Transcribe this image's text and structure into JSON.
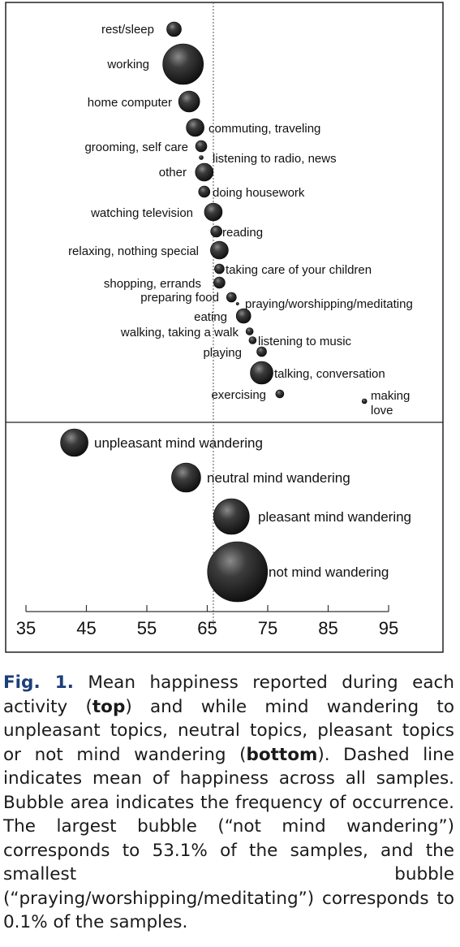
{
  "chart_data": {
    "type": "scatter",
    "xlim": [
      35,
      95
    ],
    "x_ticks": [
      "35",
      "45",
      "55",
      "65",
      "75",
      "85",
      "95"
    ],
    "mean_line": 66,
    "top_panel": {
      "points": [
        {
          "label": "rest/sleep",
          "x": 59.5,
          "label_side": "left"
        },
        {
          "label": "working",
          "x": 61,
          "label_side": "left"
        },
        {
          "label": "home computer",
          "x": 62,
          "label_side": "left"
        },
        {
          "label": "commuting, traveling",
          "x": 63,
          "label_side": "right"
        },
        {
          "label": "grooming, self care",
          "x": 64,
          "label_side": "left"
        },
        {
          "label": "listening to radio, news",
          "x": 64,
          "label_side": "right"
        },
        {
          "label": "other",
          "x": 64.5,
          "label_side": "left"
        },
        {
          "label": "doing housework",
          "x": 64.5,
          "label_side": "right"
        },
        {
          "label": "watching television",
          "x": 66,
          "label_side": "left"
        },
        {
          "label": "reading",
          "x": 66.5,
          "label_side": "right"
        },
        {
          "label": "relaxing, nothing special",
          "x": 67,
          "label_side": "left"
        },
        {
          "label": "taking care of your children",
          "x": 67,
          "label_side": "right"
        },
        {
          "label": "shopping, errands",
          "x": 67,
          "label_side": "left"
        },
        {
          "label": "preparing food",
          "x": 69,
          "label_side": "left"
        },
        {
          "label": "praying/worshipping/meditating",
          "x": 70,
          "label_side": "right"
        },
        {
          "label": "eating",
          "x": 71,
          "label_side": "left"
        },
        {
          "label": "walking, taking a walk",
          "x": 72,
          "label_side": "left"
        },
        {
          "label": "listening to music",
          "x": 72.5,
          "label_side": "right"
        },
        {
          "label": "playing",
          "x": 74,
          "label_side": "left"
        },
        {
          "label": "talking, conversation",
          "x": 74,
          "label_side": "right"
        },
        {
          "label": "exercising",
          "x": 77,
          "label_side": "left"
        },
        {
          "label": "making\nlove",
          "x": 91,
          "label_side": "right"
        }
      ]
    },
    "bottom_panel": {
      "points": [
        {
          "label": "unpleasant mind wandering",
          "x": 43,
          "label_side": "right"
        },
        {
          "label": "neutral mind wandering",
          "x": 61.5,
          "label_side": "right"
        },
        {
          "label": "pleasant mind wandering",
          "x": 69,
          "label_side": "right"
        },
        {
          "label": "not mind wandering",
          "x": 70,
          "percent": 53.1,
          "label_side": "right"
        }
      ]
    }
  },
  "caption": {
    "prefix": "Fig. 1.",
    "parts": [
      {
        "t": " Mean happiness reported during each activity ("
      },
      {
        "t": "top",
        "b": true
      },
      {
        "t": ") and while mind wandering to unpleasant topics, neutral topics, pleasant topics or not mind wandering ("
      },
      {
        "t": "bottom",
        "b": true
      },
      {
        "t": "). Dashed line indicates mean of happiness across all samples. Bubble area indicates the frequency of occurrence. The largest bubble (“not mind wandering”) corresponds to 53.1% of the samples, and the smallest bubble (“praying/worshipping/meditating”) corresponds to 0.1% of the samples."
      }
    ]
  }
}
